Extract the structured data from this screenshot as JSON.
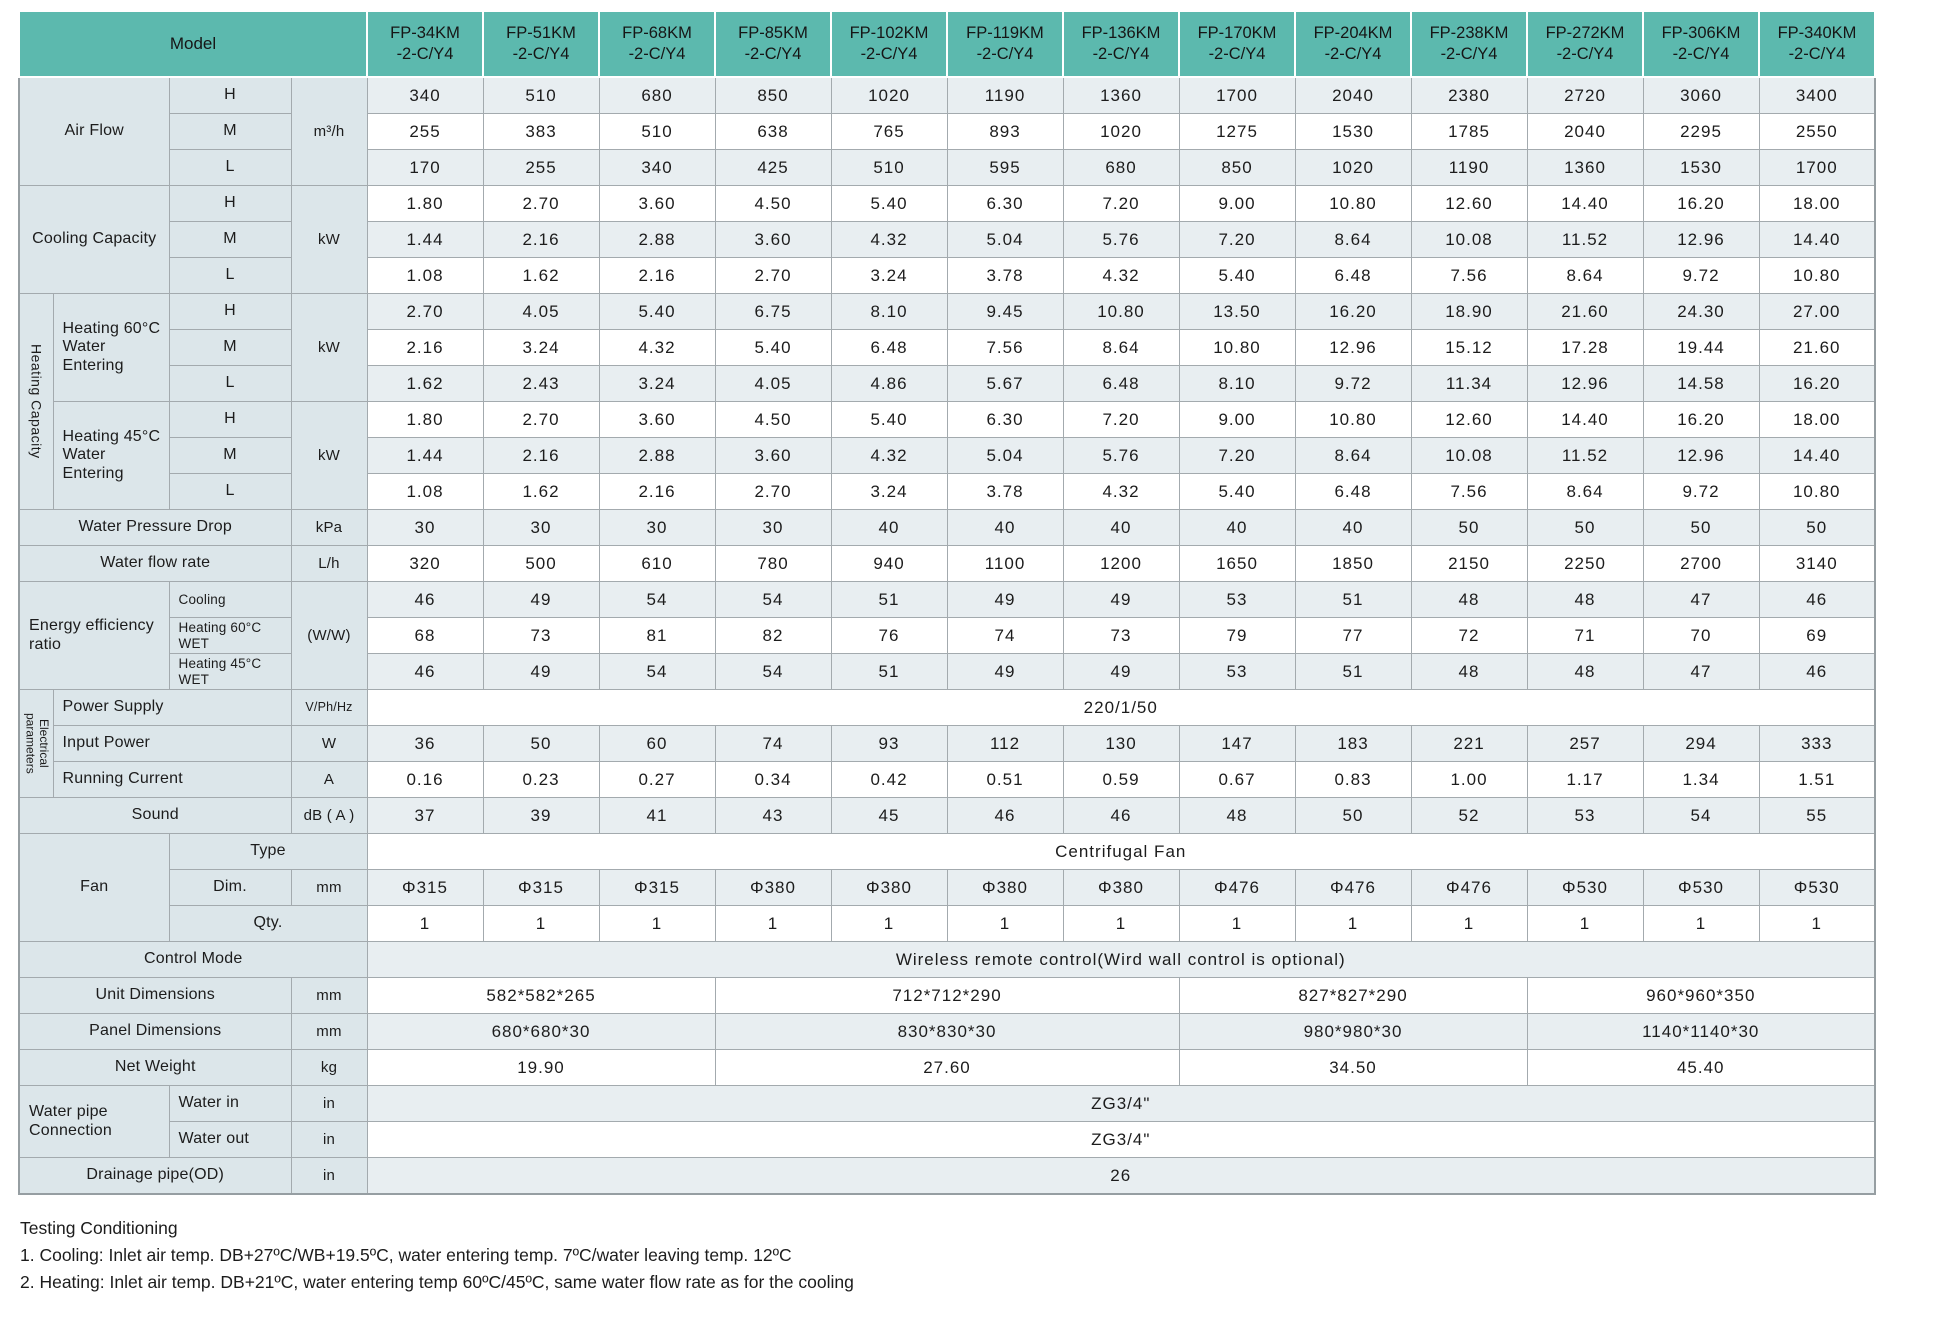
{
  "table": {
    "corner_label": "Model",
    "models": [
      "FP-34KM\n-2-C/Y4",
      "FP-51KM\n-2-C/Y4",
      "FP-68KM\n-2-C/Y4",
      "FP-85KM\n-2-C/Y4",
      "FP-102KM\n-2-C/Y4",
      "FP-119KM\n-2-C/Y4",
      "FP-136KM\n-2-C/Y4",
      "FP-170KM\n-2-C/Y4",
      "FP-204KM\n-2-C/Y4",
      "FP-238KM\n-2-C/Y4",
      "FP-272KM\n-2-C/Y4",
      "FP-306KM\n-2-C/Y4",
      "FP-340KM\n-2-C/Y4"
    ],
    "rows": [
      {
        "labels": [
          {
            "t": "Air Flow",
            "c": 2,
            "r": 3
          },
          {
            "t": "H"
          },
          {
            "t": "m³/h",
            "r": 3,
            "u": 1
          }
        ],
        "values": [
          "340",
          "510",
          "680",
          "850",
          "1020",
          "1190",
          "1360",
          "1700",
          "2040",
          "2380",
          "2720",
          "3060",
          "3400"
        ]
      },
      {
        "labels": [
          {
            "t": "M"
          }
        ],
        "values": [
          "255",
          "383",
          "510",
          "638",
          "765",
          "893",
          "1020",
          "1275",
          "1530",
          "1785",
          "2040",
          "2295",
          "2550"
        ]
      },
      {
        "labels": [
          {
            "t": "L"
          }
        ],
        "values": [
          "170",
          "255",
          "340",
          "425",
          "510",
          "595",
          "680",
          "850",
          "1020",
          "1190",
          "1360",
          "1530",
          "1700"
        ]
      },
      {
        "labels": [
          {
            "t": "Cooling Capacity",
            "c": 2,
            "r": 3
          },
          {
            "t": "H"
          },
          {
            "t": "kW",
            "r": 3,
            "u": 1
          }
        ],
        "values": [
          "1.80",
          "2.70",
          "3.60",
          "4.50",
          "5.40",
          "6.30",
          "7.20",
          "9.00",
          "10.80",
          "12.60",
          "14.40",
          "16.20",
          "18.00"
        ]
      },
      {
        "labels": [
          {
            "t": "M"
          }
        ],
        "values": [
          "1.44",
          "2.16",
          "2.88",
          "3.60",
          "4.32",
          "5.04",
          "5.76",
          "7.20",
          "8.64",
          "10.08",
          "11.52",
          "12.96",
          "14.40"
        ]
      },
      {
        "labels": [
          {
            "t": "L"
          }
        ],
        "values": [
          "1.08",
          "1.62",
          "2.16",
          "2.70",
          "3.24",
          "3.78",
          "4.32",
          "5.40",
          "6.48",
          "7.56",
          "8.64",
          "9.72",
          "10.80"
        ]
      },
      {
        "labels": [
          {
            "t": "Heating Capacity",
            "r": 6,
            "v": 1
          },
          {
            "t": "Heating 60°C Water Entering",
            "r": 3,
            "left": 1
          },
          {
            "t": "H"
          },
          {
            "t": "kW",
            "r": 3,
            "u": 1
          }
        ],
        "values": [
          "2.70",
          "4.05",
          "5.40",
          "6.75",
          "8.10",
          "9.45",
          "10.80",
          "13.50",
          "16.20",
          "18.90",
          "21.60",
          "24.30",
          "27.00"
        ]
      },
      {
        "labels": [
          {
            "t": "M"
          }
        ],
        "values": [
          "2.16",
          "3.24",
          "4.32",
          "5.40",
          "6.48",
          "7.56",
          "8.64",
          "10.80",
          "12.96",
          "15.12",
          "17.28",
          "19.44",
          "21.60"
        ]
      },
      {
        "labels": [
          {
            "t": "L"
          }
        ],
        "values": [
          "1.62",
          "2.43",
          "3.24",
          "4.05",
          "4.86",
          "5.67",
          "6.48",
          "8.10",
          "9.72",
          "11.34",
          "12.96",
          "14.58",
          "16.20"
        ]
      },
      {
        "labels": [
          {
            "t": "Heating 45°C Water Entering",
            "r": 3,
            "left": 1
          },
          {
            "t": "H"
          },
          {
            "t": "kW",
            "r": 3,
            "u": 1
          }
        ],
        "values": [
          "1.80",
          "2.70",
          "3.60",
          "4.50",
          "5.40",
          "6.30",
          "7.20",
          "9.00",
          "10.80",
          "12.60",
          "14.40",
          "16.20",
          "18.00"
        ]
      },
      {
        "labels": [
          {
            "t": "M"
          }
        ],
        "values": [
          "1.44",
          "2.16",
          "2.88",
          "3.60",
          "4.32",
          "5.04",
          "5.76",
          "7.20",
          "8.64",
          "10.08",
          "11.52",
          "12.96",
          "14.40"
        ]
      },
      {
        "labels": [
          {
            "t": "L"
          }
        ],
        "values": [
          "1.08",
          "1.62",
          "2.16",
          "2.70",
          "3.24",
          "3.78",
          "4.32",
          "5.40",
          "6.48",
          "7.56",
          "8.64",
          "9.72",
          "10.80"
        ]
      },
      {
        "labels": [
          {
            "t": "Water Pressure Drop",
            "c": 3
          },
          {
            "t": "kPa",
            "u": 1
          }
        ],
        "values": [
          "30",
          "30",
          "30",
          "30",
          "40",
          "40",
          "40",
          "40",
          "40",
          "50",
          "50",
          "50",
          "50"
        ]
      },
      {
        "labels": [
          {
            "t": "Water flow rate",
            "c": 3
          },
          {
            "t": "L/h",
            "u": 1
          }
        ],
        "values": [
          "320",
          "500",
          "610",
          "780",
          "940",
          "1100",
          "1200",
          "1650",
          "1850",
          "2150",
          "2250",
          "2700",
          "3140"
        ]
      },
      {
        "labels": [
          {
            "t": "Energy efficiency ratio",
            "c": 2,
            "r": 3,
            "left": 1
          },
          {
            "t": "Cooling",
            "sm": 1,
            "left": 1
          },
          {
            "t": "(W/W)",
            "r": 3,
            "u": 1
          }
        ],
        "values": [
          "46",
          "49",
          "54",
          "54",
          "51",
          "49",
          "49",
          "53",
          "51",
          "48",
          "48",
          "47",
          "46"
        ]
      },
      {
        "labels": [
          {
            "t": "Heating 60°C WET",
            "sm": 1,
            "left": 1
          }
        ],
        "values": [
          "68",
          "73",
          "81",
          "82",
          "76",
          "74",
          "73",
          "79",
          "77",
          "72",
          "71",
          "70",
          "69"
        ]
      },
      {
        "labels": [
          {
            "t": "Heating 45°C WET",
            "sm": 1,
            "left": 1
          }
        ],
        "values": [
          "46",
          "49",
          "54",
          "54",
          "51",
          "49",
          "49",
          "53",
          "51",
          "48",
          "48",
          "47",
          "46"
        ]
      },
      {
        "labels": [
          {
            "t": "Electrical parameters",
            "r": 3,
            "v": 1,
            "sm": 1
          },
          {
            "t": "Power Supply",
            "c": 2,
            "left": 1
          },
          {
            "t": "V/Ph/Hz",
            "u": 1,
            "sm": 1
          }
        ],
        "values": [
          {
            "t": "220/1/50",
            "c": 13
          }
        ]
      },
      {
        "labels": [
          {
            "t": "Input Power",
            "c": 2,
            "left": 1
          },
          {
            "t": "W",
            "u": 1
          }
        ],
        "values": [
          "36",
          "50",
          "60",
          "74",
          "93",
          "112",
          "130",
          "147",
          "183",
          "221",
          "257",
          "294",
          "333"
        ]
      },
      {
        "labels": [
          {
            "t": "Running Current",
            "c": 2,
            "left": 1
          },
          {
            "t": "A",
            "u": 1
          }
        ],
        "values": [
          "0.16",
          "0.23",
          "0.27",
          "0.34",
          "0.42",
          "0.51",
          "0.59",
          "0.67",
          "0.83",
          "1.00",
          "1.17",
          "1.34",
          "1.51"
        ]
      },
      {
        "labels": [
          {
            "t": "Sound",
            "c": 3
          },
          {
            "t": "dB ( A )",
            "u": 1
          }
        ],
        "values": [
          "37",
          "39",
          "41",
          "43",
          "45",
          "46",
          "46",
          "48",
          "50",
          "52",
          "53",
          "54",
          "55"
        ]
      },
      {
        "labels": [
          {
            "t": "Fan",
            "c": 2,
            "r": 3
          },
          {
            "t": "Type",
            "c": 2
          }
        ],
        "values": [
          {
            "t": "Centrifugal Fan",
            "c": 13
          }
        ]
      },
      {
        "labels": [
          {
            "t": "Dim."
          },
          {
            "t": "mm",
            "u": 1
          }
        ],
        "values": [
          "Φ315",
          "Φ315",
          "Φ315",
          "Φ380",
          "Φ380",
          "Φ380",
          "Φ380",
          "Φ476",
          "Φ476",
          "Φ476",
          "Φ530",
          "Φ530",
          "Φ530"
        ]
      },
      {
        "labels": [
          {
            "t": "Qty.",
            "c": 2
          }
        ],
        "values": [
          "1",
          "1",
          "1",
          "1",
          "1",
          "1",
          "1",
          "1",
          "1",
          "1",
          "1",
          "1",
          "1"
        ]
      },
      {
        "labels": [
          {
            "t": "Control Mode",
            "c": 4
          }
        ],
        "values": [
          {
            "t": "Wireless remote control(Wird wall control is optional)",
            "c": 13
          }
        ]
      },
      {
        "labels": [
          {
            "t": "Unit Dimensions",
            "c": 3
          },
          {
            "t": "mm",
            "u": 1
          }
        ],
        "values": [
          {
            "t": "582*582*265",
            "c": 3
          },
          {
            "t": "712*712*290",
            "c": 4
          },
          {
            "t": "827*827*290",
            "c": 3
          },
          {
            "t": "960*960*350",
            "c": 3
          }
        ]
      },
      {
        "labels": [
          {
            "t": "Panel Dimensions",
            "c": 3
          },
          {
            "t": "mm",
            "u": 1
          }
        ],
        "values": [
          {
            "t": "680*680*30",
            "c": 3
          },
          {
            "t": "830*830*30",
            "c": 4
          },
          {
            "t": "980*980*30",
            "c": 3
          },
          {
            "t": "1140*1140*30",
            "c": 3
          }
        ]
      },
      {
        "labels": [
          {
            "t": "Net Weight",
            "c": 3
          },
          {
            "t": "kg",
            "u": 1
          }
        ],
        "values": [
          {
            "t": "19.90",
            "c": 3
          },
          {
            "t": "27.60",
            "c": 4
          },
          {
            "t": "34.50",
            "c": 3
          },
          {
            "t": "45.40",
            "c": 3
          }
        ]
      },
      {
        "labels": [
          {
            "t": "Water pipe Connection",
            "c": 2,
            "r": 2,
            "left": 1
          },
          {
            "t": "Water in",
            "left": 1
          },
          {
            "t": "in",
            "u": 1
          }
        ],
        "values": [
          {
            "t": "ZG3/4\"",
            "c": 13
          }
        ]
      },
      {
        "labels": [
          {
            "t": "Water out",
            "left": 1
          },
          {
            "t": "in",
            "u": 1
          }
        ],
        "values": [
          {
            "t": "ZG3/4\"",
            "c": 13
          }
        ]
      },
      {
        "labels": [
          {
            "t": "Drainage pipe(OD)",
            "c": 3
          },
          {
            "t": "in",
            "u": 1
          }
        ],
        "values": [
          {
            "t": "26",
            "c": 13
          }
        ]
      }
    ]
  },
  "colors": {
    "header_teal": "#5cb9ae",
    "label_bg": "#dce6ea",
    "shaded_row_bg": "#e8eef1",
    "border": "#a3aaae"
  },
  "footer": {
    "title": "Testing Conditioning",
    "notes": [
      "1. Cooling: Inlet air temp. DB+27ºC/WB+19.5ºC, water entering temp. 7ºC/water leaving temp. 12ºC",
      "2. Heating: Inlet air temp. DB+21ºC, water entering temp 60ºC/45ºC, same water flow rate as for the cooling"
    ]
  }
}
